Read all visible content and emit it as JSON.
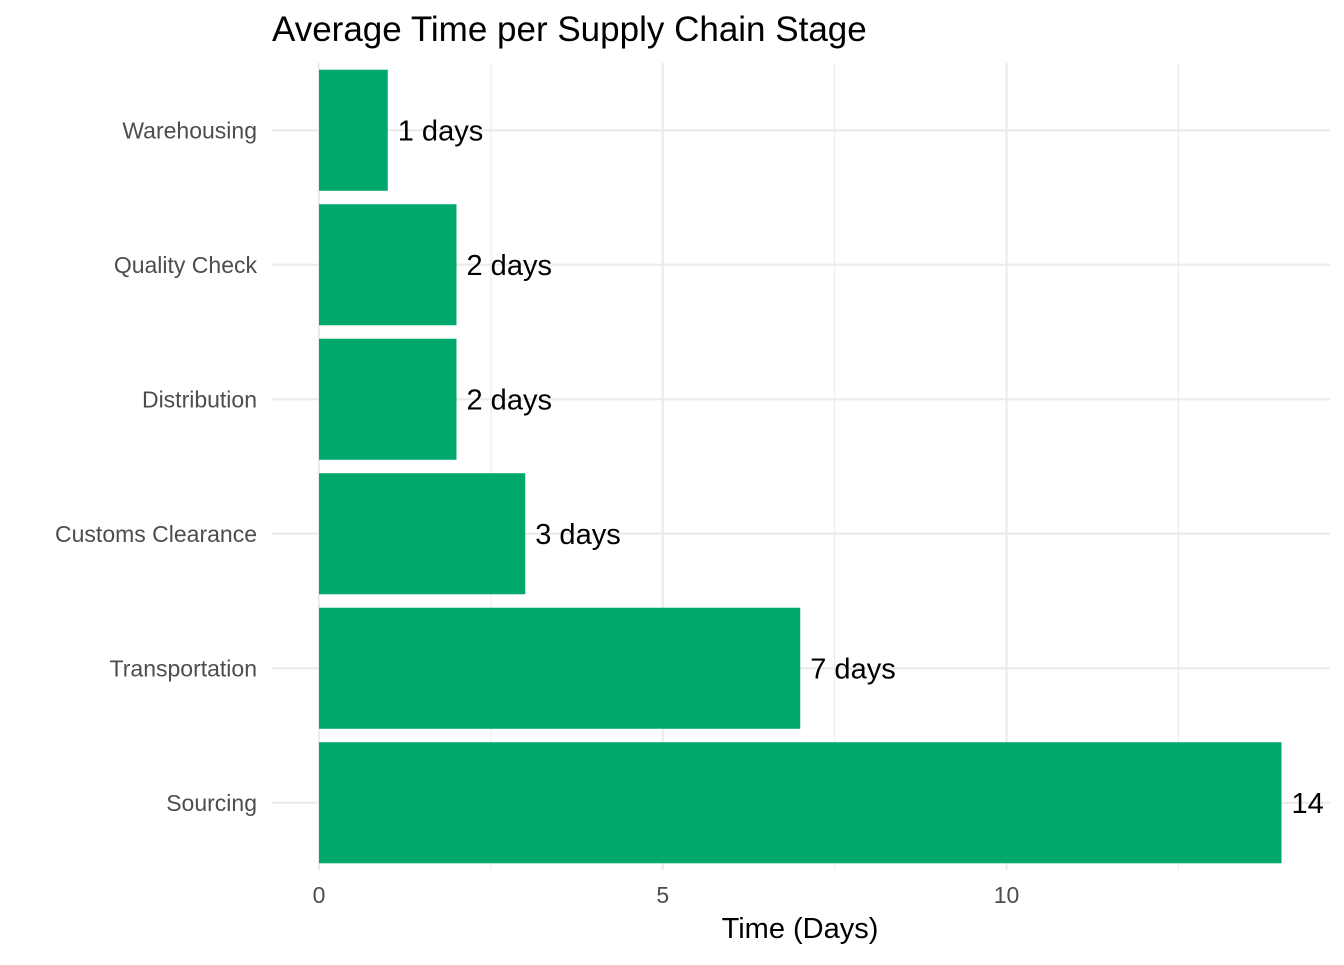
{
  "chart_data": {
    "type": "bar",
    "orientation": "horizontal",
    "title": "Average Time per Supply Chain Stage",
    "xlabel": "Time (Days)",
    "ylabel": "",
    "categories": [
      "Sourcing",
      "Transportation",
      "Customs Clearance",
      "Distribution",
      "Quality Check",
      "Warehousing"
    ],
    "values": [
      14,
      7,
      3,
      2,
      2,
      1
    ],
    "data_labels": [
      "14",
      "7 days",
      "3 days",
      "2 days",
      "2 days",
      "1 days"
    ],
    "xlim": [
      0,
      14.7
    ],
    "x_ticks": [
      0,
      5,
      10
    ],
    "x_tick_labels": [
      "0",
      "5",
      "10"
    ],
    "minor_gridlines": [
      2.5,
      7.5,
      12.5
    ],
    "grid": true,
    "bar_color": "#00A86B",
    "gridline_color": "#ebebeb",
    "background": "#ffffff"
  }
}
